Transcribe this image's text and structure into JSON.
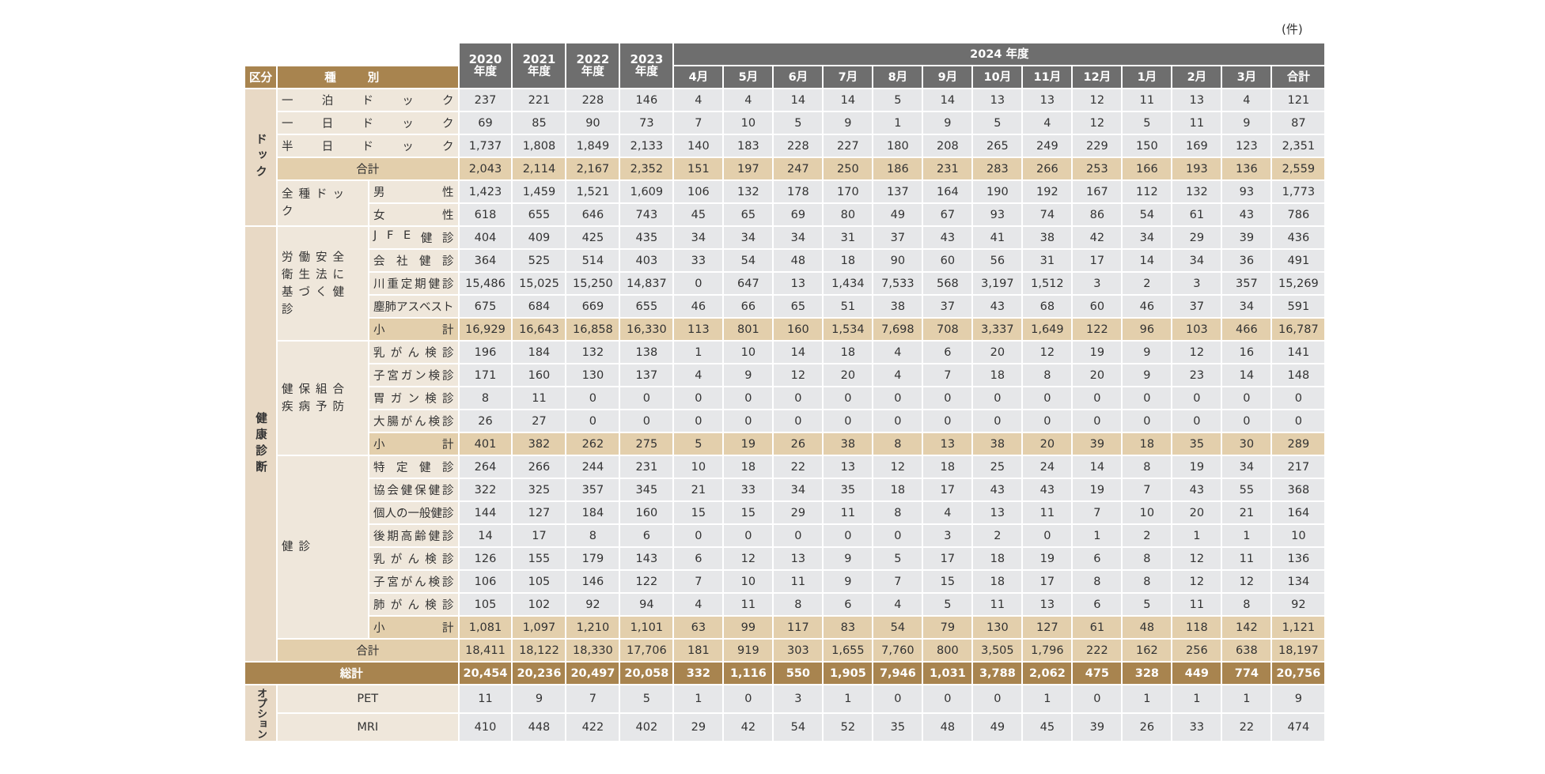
{
  "header": {
    "unit": "(件)",
    "division": "区分",
    "kind": "種別",
    "years": [
      {
        "year": "2020",
        "suffix": "年度"
      },
      {
        "year": "2021",
        "suffix": "年度"
      },
      {
        "year": "2022",
        "suffix": "年度"
      },
      {
        "year": "2023",
        "suffix": "年度"
      }
    ],
    "current": "2024 年度",
    "months": [
      "4月",
      "5月",
      "6月",
      "7月",
      "8月",
      "9月",
      "10月",
      "11月",
      "12月",
      "1月",
      "2月",
      "3月",
      "合計"
    ]
  },
  "sections": [
    {
      "label": "ドック",
      "items": [
        {
          "label": "一泊ドック",
          "values": [
            "237",
            "221",
            "228",
            "146",
            "4",
            "4",
            "14",
            "14",
            "5",
            "14",
            "13",
            "13",
            "12",
            "11",
            "13",
            "4",
            "121"
          ]
        },
        {
          "label": "一日ドック",
          "values": [
            "69",
            "85",
            "90",
            "73",
            "7",
            "10",
            "5",
            "9",
            "1",
            "9",
            "5",
            "4",
            "12",
            "5",
            "11",
            "9",
            "87"
          ]
        },
        {
          "label": "半日ドック",
          "values": [
            "1,737",
            "1,808",
            "1,849",
            "2,133",
            "140",
            "183",
            "228",
            "227",
            "180",
            "208",
            "265",
            "249",
            "229",
            "150",
            "169",
            "123",
            "2,351"
          ]
        }
      ],
      "total": {
        "label": "合計",
        "values": [
          "2,043",
          "2,114",
          "2,167",
          "2,352",
          "151",
          "197",
          "247",
          "250",
          "186",
          "231",
          "283",
          "266",
          "253",
          "166",
          "193",
          "136",
          "2,559"
        ]
      },
      "after": [
        {
          "label": "全種ドック",
          "rows": [
            {
              "label": "男性",
              "values": [
                "1,423",
                "1,459",
                "1,521",
                "1,609",
                "106",
                "132",
                "178",
                "170",
                "137",
                "164",
                "190",
                "192",
                "167",
                "112",
                "132",
                "93",
                "1,773"
              ]
            },
            {
              "label": "女性",
              "values": [
                "618",
                "655",
                "646",
                "743",
                "45",
                "65",
                "69",
                "80",
                "49",
                "67",
                "93",
                "74",
                "86",
                "54",
                "61",
                "43",
                "786"
              ]
            }
          ]
        }
      ]
    },
    {
      "label": "健康診断",
      "items": [
        {
          "label": "労働安全衛生法に基づく健診",
          "rows": [
            {
              "label": "JFE健診",
              "values": [
                "404",
                "409",
                "425",
                "435",
                "34",
                "34",
                "34",
                "31",
                "37",
                "43",
                "41",
                "38",
                "42",
                "34",
                "29",
                "39",
                "436"
              ]
            },
            {
              "label": "会社健診",
              "values": [
                "364",
                "525",
                "514",
                "403",
                "33",
                "54",
                "48",
                "18",
                "90",
                "60",
                "56",
                "31",
                "17",
                "14",
                "34",
                "36",
                "491"
              ]
            },
            {
              "label": "川重定期健診",
              "values": [
                "15,486",
                "15,025",
                "15,250",
                "14,837",
                "0",
                "647",
                "13",
                "1,434",
                "7,533",
                "568",
                "3,197",
                "1,512",
                "3",
                "2",
                "3",
                "357",
                "15,269"
              ]
            },
            {
              "label": "塵肺アスベスト",
              "values": [
                "675",
                "684",
                "669",
                "655",
                "46",
                "66",
                "65",
                "51",
                "38",
                "37",
                "43",
                "68",
                "60",
                "46",
                "37",
                "34",
                "591"
              ]
            }
          ],
          "subtotal": {
            "label": "小計",
            "values": [
              "16,929",
              "16,643",
              "16,858",
              "16,330",
              "113",
              "801",
              "160",
              "1,534",
              "7,698",
              "708",
              "3,337",
              "1,649",
              "122",
              "96",
              "103",
              "466",
              "16,787"
            ]
          }
        },
        {
          "label": "健保組合疾病予防",
          "rows": [
            {
              "label": "乳がん検診",
              "values": [
                "196",
                "184",
                "132",
                "138",
                "1",
                "10",
                "14",
                "18",
                "4",
                "6",
                "20",
                "12",
                "19",
                "9",
                "12",
                "16",
                "141"
              ]
            },
            {
              "label": "子宮ガン検診",
              "values": [
                "171",
                "160",
                "130",
                "137",
                "4",
                "9",
                "12",
                "20",
                "4",
                "7",
                "18",
                "8",
                "20",
                "9",
                "23",
                "14",
                "148"
              ]
            },
            {
              "label": "胃ガン検診",
              "values": [
                "8",
                "11",
                "0",
                "0",
                "0",
                "0",
                "0",
                "0",
                "0",
                "0",
                "0",
                "0",
                "0",
                "0",
                "0",
                "0",
                "0"
              ]
            },
            {
              "label": "大腸がん検診",
              "values": [
                "26",
                "27",
                "0",
                "0",
                "0",
                "0",
                "0",
                "0",
                "0",
                "0",
                "0",
                "0",
                "0",
                "0",
                "0",
                "0",
                "0"
              ]
            }
          ],
          "subtotal": {
            "label": "小計",
            "values": [
              "401",
              "382",
              "262",
              "275",
              "5",
              "19",
              "26",
              "38",
              "8",
              "13",
              "38",
              "20",
              "39",
              "18",
              "35",
              "30",
              "289"
            ]
          }
        },
        {
          "label": "健診",
          "rows": [
            {
              "label": "特定健診",
              "values": [
                "264",
                "266",
                "244",
                "231",
                "10",
                "18",
                "22",
                "13",
                "12",
                "18",
                "25",
                "24",
                "14",
                "8",
                "19",
                "34",
                "217"
              ]
            },
            {
              "label": "協会健保健診",
              "values": [
                "322",
                "325",
                "357",
                "345",
                "21",
                "33",
                "34",
                "35",
                "18",
                "17",
                "43",
                "43",
                "19",
                "7",
                "43",
                "55",
                "368"
              ]
            },
            {
              "label": "個人の一般健診",
              "values": [
                "144",
                "127",
                "184",
                "160",
                "15",
                "15",
                "29",
                "11",
                "8",
                "4",
                "13",
                "11",
                "7",
                "10",
                "20",
                "21",
                "164"
              ]
            },
            {
              "label": "後期高齢健診",
              "values": [
                "14",
                "17",
                "8",
                "6",
                "0",
                "0",
                "0",
                "0",
                "0",
                "3",
                "2",
                "0",
                "1",
                "2",
                "1",
                "1",
                "10"
              ]
            },
            {
              "label": "乳がん検診",
              "values": [
                "126",
                "155",
                "179",
                "143",
                "6",
                "12",
                "13",
                "9",
                "5",
                "17",
                "18",
                "19",
                "6",
                "8",
                "12",
                "11",
                "136"
              ]
            },
            {
              "label": "子宮がん検診",
              "values": [
                "106",
                "105",
                "146",
                "122",
                "7",
                "10",
                "11",
                "9",
                "7",
                "15",
                "18",
                "17",
                "8",
                "8",
                "12",
                "12",
                "134"
              ]
            },
            {
              "label": "肺がん検診",
              "values": [
                "105",
                "102",
                "92",
                "94",
                "4",
                "11",
                "8",
                "6",
                "4",
                "5",
                "11",
                "13",
                "6",
                "5",
                "11",
                "8",
                "92"
              ]
            }
          ],
          "subtotal": {
            "label": "小計",
            "values": [
              "1,081",
              "1,097",
              "1,210",
              "1,101",
              "63",
              "99",
              "117",
              "83",
              "54",
              "79",
              "130",
              "127",
              "61",
              "48",
              "118",
              "142",
              "1,121"
            ]
          }
        }
      ],
      "total": {
        "label": "合計",
        "values": [
          "18,411",
          "18,122",
          "18,330",
          "17,706",
          "181",
          "919",
          "303",
          "1,655",
          "7,760",
          "800",
          "3,505",
          "1,796",
          "222",
          "162",
          "256",
          "638",
          "18,197"
        ]
      }
    }
  ],
  "grand_total": {
    "label": "総計",
    "values": [
      "20,454",
      "20,236",
      "20,497",
      "20,058",
      "332",
      "1,116",
      "550",
      "1,905",
      "7,946",
      "1,031",
      "3,788",
      "2,062",
      "475",
      "328",
      "449",
      "774",
      "20,756"
    ]
  },
  "options": {
    "label": "オプション",
    "rows": [
      {
        "label": "PET",
        "values": [
          "11",
          "9",
          "7",
          "5",
          "1",
          "0",
          "3",
          "1",
          "0",
          "0",
          "0",
          "1",
          "0",
          "1",
          "1",
          "1",
          "9"
        ]
      },
      {
        "label": "MRI",
        "values": [
          "410",
          "448",
          "422",
          "402",
          "29",
          "42",
          "54",
          "52",
          "35",
          "48",
          "49",
          "45",
          "39",
          "26",
          "33",
          "22",
          "474"
        ]
      }
    ]
  }
}
